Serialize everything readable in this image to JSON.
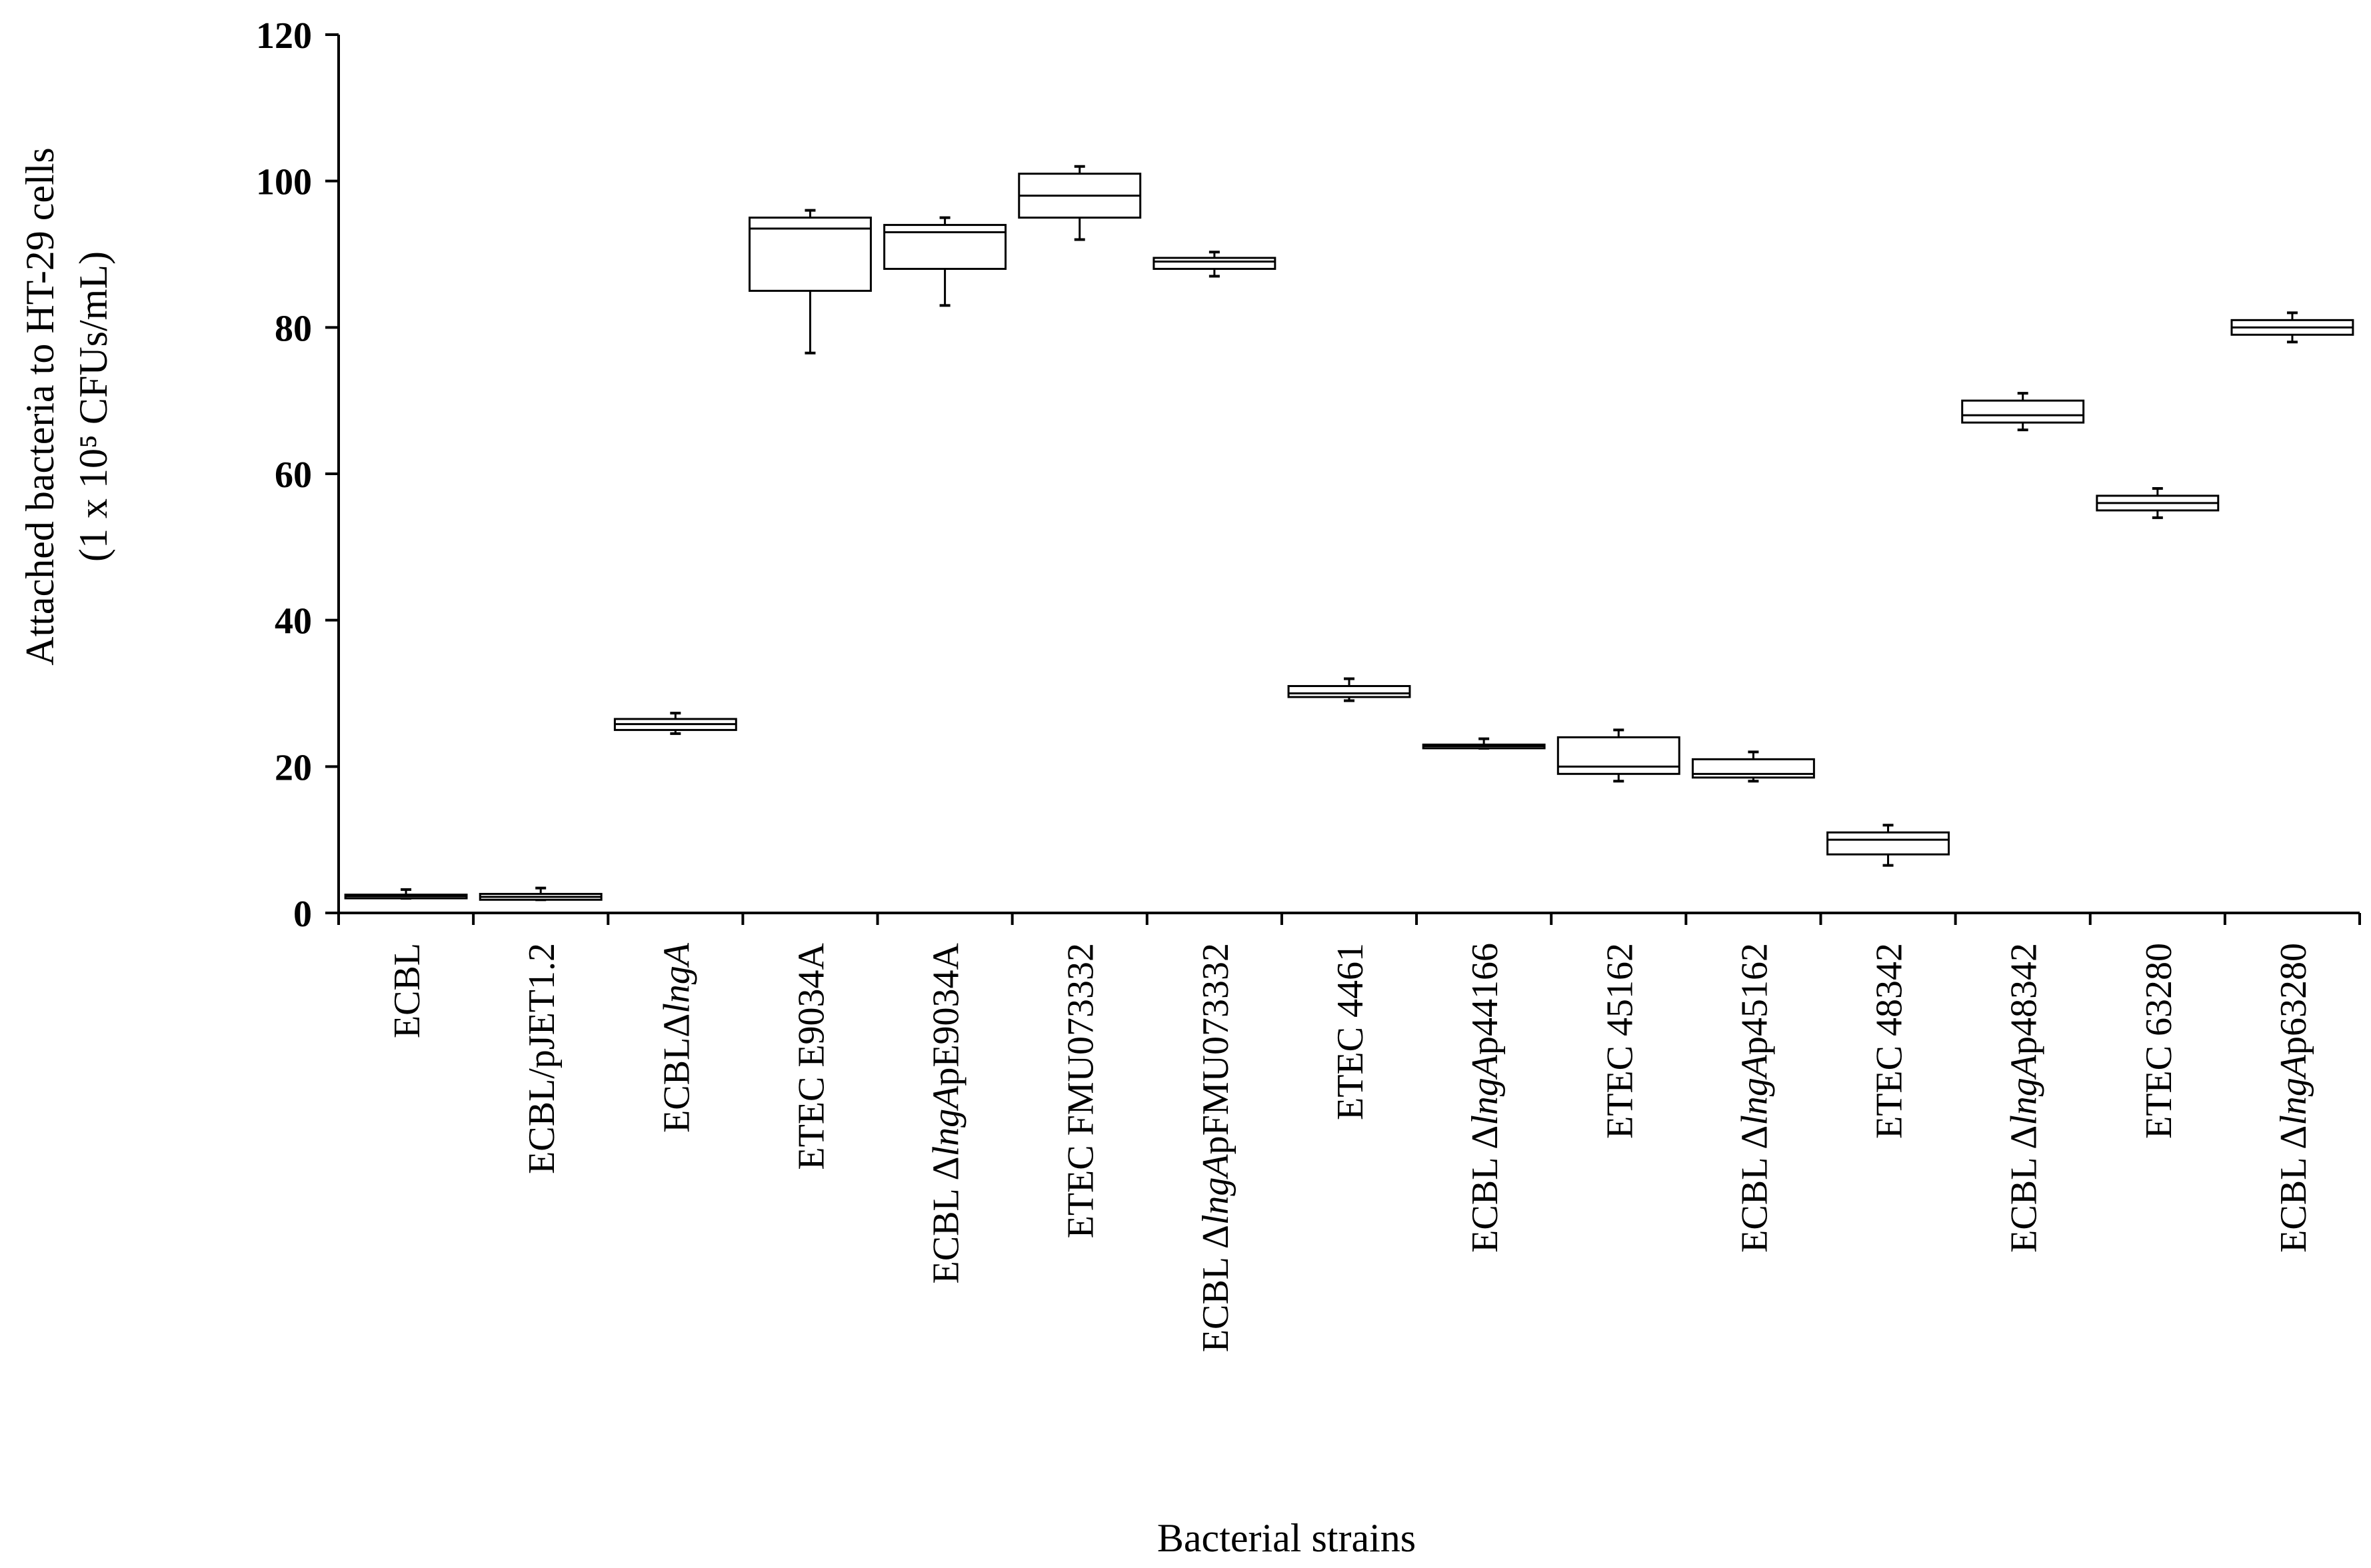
{
  "chart_data": {
    "type": "box",
    "title": "",
    "xlabel": "Bacterial strains",
    "ylabel_lines": [
      "Attached bacteria to HT-29 cells",
      "(1 x 10⁵ CFUs/mL)"
    ],
    "ylim": [
      0,
      120
    ],
    "yticks": [
      0,
      20,
      40,
      60,
      80,
      100,
      120
    ],
    "grid": false,
    "legend": "none",
    "categories": [
      {
        "label": [
          {
            "t": "ECBL",
            "i": false
          }
        ]
      },
      {
        "label": [
          {
            "t": "ECBL/pJET1.2",
            "i": false
          }
        ]
      },
      {
        "label": [
          {
            "t": "ECBLΔ",
            "i": false
          },
          {
            "t": "lngA",
            "i": true
          }
        ]
      },
      {
        "label": [
          {
            "t": "ETEC E9034A",
            "i": false
          }
        ]
      },
      {
        "label": [
          {
            "t": "ECBL Δ",
            "i": false
          },
          {
            "t": "lngA",
            "i": true
          },
          {
            "t": "pE9034A",
            "i": false
          }
        ]
      },
      {
        "label": [
          {
            "t": "ETEC FMU073332",
            "i": false
          }
        ]
      },
      {
        "label": [
          {
            "t": "ECBL Δ",
            "i": false
          },
          {
            "t": "lngA",
            "i": true
          },
          {
            "t": "pFMU073332",
            "i": false
          }
        ]
      },
      {
        "label": [
          {
            "t": "ETEC 4461",
            "i": false
          }
        ]
      },
      {
        "label": [
          {
            "t": "ECBL Δ",
            "i": false
          },
          {
            "t": "lngA",
            "i": true
          },
          {
            "t": "p44166",
            "i": false
          }
        ]
      },
      {
        "label": [
          {
            "t": "ETEC 45162",
            "i": false
          }
        ]
      },
      {
        "label": [
          {
            "t": "ECBL Δ",
            "i": false
          },
          {
            "t": "lngA",
            "i": true
          },
          {
            "t": "p45162",
            "i": false
          }
        ]
      },
      {
        "label": [
          {
            "t": "ETEC 48342",
            "i": false
          }
        ]
      },
      {
        "label": [
          {
            "t": "ECBL Δ",
            "i": false
          },
          {
            "t": "lngA",
            "i": true
          },
          {
            "t": "p48342",
            "i": false
          }
        ]
      },
      {
        "label": [
          {
            "t": "ETEC 63280",
            "i": false
          }
        ]
      },
      {
        "label": [
          {
            "t": "ECBL Δ",
            "i": false
          },
          {
            "t": "lngA",
            "i": true
          },
          {
            "t": "p63280",
            "i": false
          }
        ]
      }
    ],
    "boxes": [
      {
        "min": 2.0,
        "q1": 2.0,
        "median": 2.3,
        "q3": 2.5,
        "max": 3.2
      },
      {
        "min": 1.8,
        "q1": 1.8,
        "median": 2.2,
        "q3": 2.6,
        "max": 3.4
      },
      {
        "min": 24.5,
        "q1": 25.0,
        "median": 25.8,
        "q3": 26.5,
        "max": 27.3
      },
      {
        "min": 76.5,
        "q1": 85.0,
        "median": 93.5,
        "q3": 95.0,
        "max": 96.0
      },
      {
        "min": 83.0,
        "q1": 88.0,
        "median": 93.0,
        "q3": 94.0,
        "max": 95.0
      },
      {
        "min": 92.0,
        "q1": 95.0,
        "median": 98.0,
        "q3": 101.0,
        "max": 102.0
      },
      {
        "min": 87.0,
        "q1": 88.0,
        "median": 89.0,
        "q3": 89.5,
        "max": 90.3
      },
      {
        "min": 29.0,
        "q1": 29.5,
        "median": 30.0,
        "q3": 31.0,
        "max": 32.0
      },
      {
        "min": 22.5,
        "q1": 22.5,
        "median": 22.8,
        "q3": 23.0,
        "max": 23.8
      },
      {
        "min": 18.0,
        "q1": 19.0,
        "median": 20.0,
        "q3": 24.0,
        "max": 25.0
      },
      {
        "min": 18.0,
        "q1": 18.5,
        "median": 19.0,
        "q3": 21.0,
        "max": 22.0
      },
      {
        "min": 6.5,
        "q1": 8.0,
        "median": 10.0,
        "q3": 11.0,
        "max": 12.0
      },
      {
        "min": 66.0,
        "q1": 67.0,
        "median": 68.0,
        "q3": 70.0,
        "max": 71.0
      },
      {
        "min": 54.0,
        "q1": 55.0,
        "median": 56.0,
        "q3": 57.0,
        "max": 58.0
      },
      {
        "min": 78.0,
        "q1": 79.0,
        "median": 80.0,
        "q3": 81.0,
        "max": 82.0
      }
    ]
  }
}
